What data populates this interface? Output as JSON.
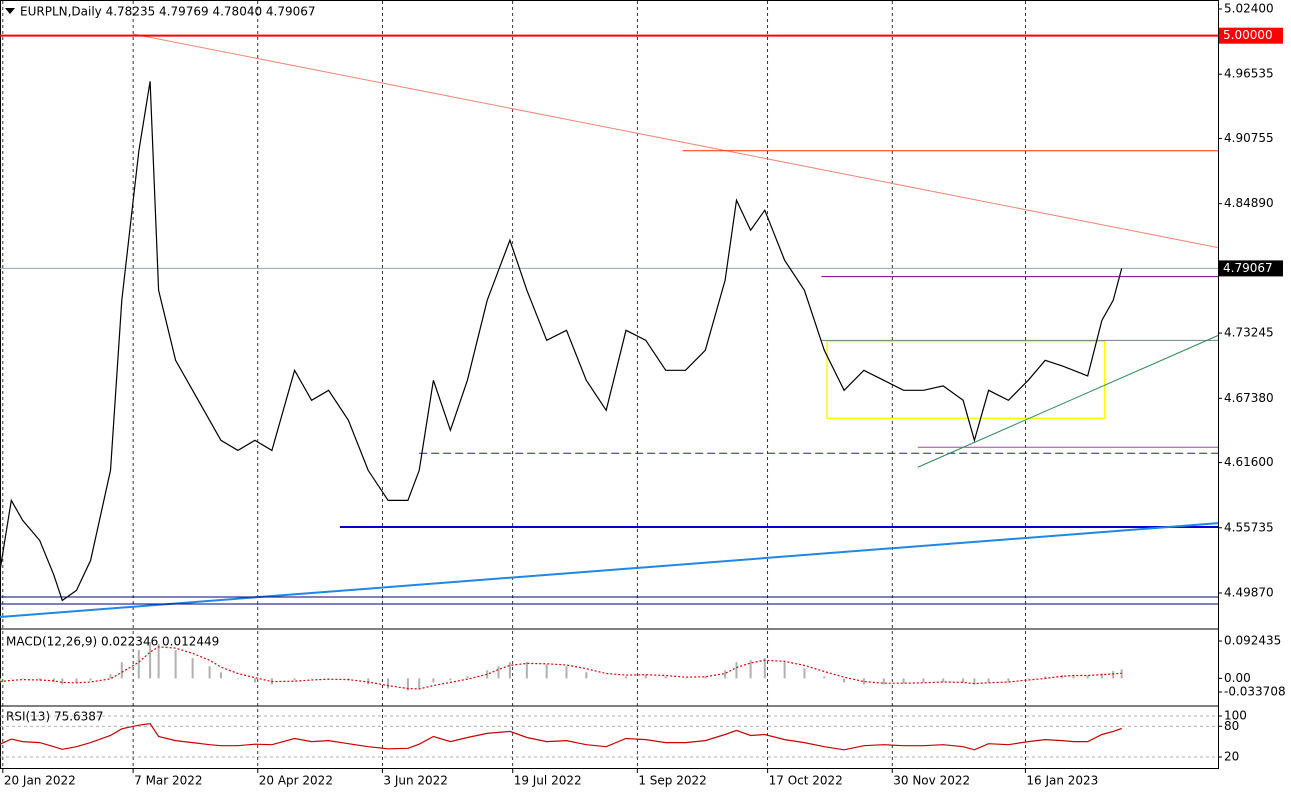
{
  "chart_data": [
    {
      "type": "line",
      "title": "EURPLN,Daily  4.78235 4.79769 4.78040 4.79067",
      "x": [
        "2022-01-19",
        "2022-01-23",
        "2022-01-27",
        "2022-02-02",
        "2022-02-07",
        "2022-02-10",
        "2022-02-15",
        "2022-02-20",
        "2022-02-27",
        "2022-03-03",
        "2022-03-09",
        "2022-03-13",
        "2022-03-16",
        "2022-03-22",
        "2022-03-28",
        "2022-04-03",
        "2022-04-07",
        "2022-04-13",
        "2022-04-19",
        "2022-04-25",
        "2022-05-03",
        "2022-05-09",
        "2022-05-15",
        "2022-05-22",
        "2022-05-29",
        "2022-06-05",
        "2022-06-12",
        "2022-06-16",
        "2022-06-21",
        "2022-06-27",
        "2022-07-03",
        "2022-07-10",
        "2022-07-14",
        "2022-07-18",
        "2022-07-24",
        "2022-07-31",
        "2022-08-07",
        "2022-08-14",
        "2022-08-21",
        "2022-08-28",
        "2022-09-04",
        "2022-09-11",
        "2022-09-18",
        "2022-09-25",
        "2022-10-02",
        "2022-10-06",
        "2022-10-11",
        "2022-10-16",
        "2022-10-23",
        "2022-10-30",
        "2022-11-06",
        "2022-11-13",
        "2022-11-20",
        "2022-11-27",
        "2022-12-04",
        "2022-12-11",
        "2022-12-18",
        "2022-12-25",
        "2022-12-29",
        "2023-01-03",
        "2023-01-10",
        "2023-01-17",
        "2023-01-23",
        "2023-01-29",
        "2023-02-02",
        "2023-02-07",
        "2023-02-12",
        "2023-02-16",
        "2023-02-19"
      ],
      "series": [
        {
          "color": "#000000",
          "values": [
            4.519,
            4.582,
            4.564,
            4.546,
            4.515,
            4.492,
            4.501,
            4.528,
            4.609,
            4.762,
            4.896,
            4.959,
            4.771,
            4.708,
            4.681,
            4.654,
            4.636,
            4.627,
            4.636,
            4.627,
            4.699,
            4.672,
            4.681,
            4.654,
            4.609,
            4.582,
            4.582,
            4.609,
            4.69,
            4.645,
            4.69,
            4.762,
            4.789,
            4.816,
            4.771,
            4.726,
            4.735,
            4.69,
            4.663,
            4.735,
            4.726,
            4.699,
            4.699,
            4.717,
            4.78,
            4.852,
            4.825,
            4.843,
            4.798,
            4.771,
            4.717,
            4.681,
            4.699,
            4.69,
            4.681,
            4.681,
            4.685,
            4.672,
            4.636,
            4.681,
            4.672,
            4.69,
            4.708,
            4.703,
            4.699,
            4.694,
            4.744,
            4.762,
            4.79067
          ]
        }
      ],
      "xlim": [
        "2022-01-19",
        "2023-03-25"
      ],
      "xticks": [
        {
          "value": "2022-01-20",
          "label": "20 Jan 2022"
        },
        {
          "value": "2022-03-07",
          "label": "7 Mar 2022"
        },
        {
          "value": "2022-04-20",
          "label": "20 Apr 2022"
        },
        {
          "value": "2022-06-03",
          "label": "3 Jun 2022"
        },
        {
          "value": "2022-07-19",
          "label": "19 Jul 2022"
        },
        {
          "value": "2022-09-01",
          "label": "1 Sep 2022"
        },
        {
          "value": "2022-10-17",
          "label": "17 Oct 2022"
        },
        {
          "value": "2022-11-30",
          "label": "30 Nov 2022"
        },
        {
          "value": "2023-01-16",
          "label": "16 Jan 2023"
        }
      ],
      "ylim": [
        4.4672,
        5.0312
      ],
      "yticks": [
        {
          "value": 5.024,
          "label": "5.02400"
        },
        {
          "value": 4.96535,
          "label": "4.96535"
        },
        {
          "value": 4.90755,
          "label": "4.90755"
        },
        {
          "value": 4.8489,
          "label": "4.84890"
        },
        {
          "value": 4.73245,
          "label": "4.73245"
        },
        {
          "value": 4.6738,
          "label": "4.67380"
        },
        {
          "value": 4.616,
          "label": "4.61600"
        },
        {
          "value": 4.55735,
          "label": "4.55735"
        },
        {
          "value": 4.4987,
          "label": "4.49870"
        }
      ],
      "grid": "vertical",
      "levels": [
        {
          "value": 5.0,
          "label": "5.00000",
          "color": "#ff0000",
          "label_fill": "#ff0000"
        },
        {
          "value": 4.79067,
          "label": "4.79067",
          "color": "#90a4ae",
          "label_fill": "#000000"
        },
        {
          "value": 4.4951,
          "color": "#000080"
        },
        {
          "value": 4.4888,
          "color": "#000080"
        }
      ],
      "lines": [
        {
          "x": [
            "2022-03-07",
            "2023-03-25"
          ],
          "y": [
            5.0015,
            4.8094
          ],
          "color": "#f08878"
        },
        {
          "x": [
            "2022-09-17",
            "2023-03-25"
          ],
          "y": [
            4.8965,
            4.8965
          ],
          "color": "#ff3300"
        },
        {
          "x": [
            "2022-11-05",
            "2023-03-25"
          ],
          "y": [
            4.7833,
            4.7833
          ],
          "color": "#800080"
        },
        {
          "x": [
            "2022-11-05",
            "2023-03-25"
          ],
          "y": [
            4.7259,
            4.7259
          ],
          "color": "#708090"
        },
        {
          "x": [
            "2022-05-19",
            "2023-03-25"
          ],
          "y": [
            4.558,
            4.558
          ],
          "color": "#0000cc",
          "width": 2
        },
        {
          "x": [
            "2022-06-16",
            "2023-03-25"
          ],
          "y": [
            4.6244,
            4.6244
          ],
          "color": "#1a237e",
          "dash": true
        },
        {
          "x": [
            "2022-12-09",
            "2023-03-25"
          ],
          "y": [
            4.6298,
            4.6298
          ],
          "color": "#9c4f9c"
        },
        {
          "x": [
            "2022-12-09",
            "2023-03-25"
          ],
          "y": [
            4.6118,
            4.7303
          ],
          "color": "#2e8b57"
        },
        {
          "x": [
            "2022-01-19",
            "2023-03-25"
          ],
          "y": [
            4.4771,
            4.5615
          ],
          "color": "#1e88e5",
          "width": 2
        }
      ],
      "rects": [
        {
          "x": [
            "2022-11-07",
            "2023-02-13"
          ],
          "y": [
            4.725,
            4.6558
          ],
          "color": "#ffff00"
        }
      ]
    },
    {
      "type": "line",
      "title": "MACD(12,26,9) 0.022346 0.012449",
      "x": [
        "2022-01-19",
        "2022-01-23",
        "2022-01-27",
        "2022-02-02",
        "2022-02-07",
        "2022-02-10",
        "2022-02-15",
        "2022-02-20",
        "2022-02-27",
        "2022-03-03",
        "2022-03-09",
        "2022-03-13",
        "2022-03-16",
        "2022-03-22",
        "2022-03-28",
        "2022-04-03",
        "2022-04-07",
        "2022-04-13",
        "2022-04-19",
        "2022-04-25",
        "2022-05-03",
        "2022-05-09",
        "2022-05-15",
        "2022-05-22",
        "2022-05-29",
        "2022-06-05",
        "2022-06-12",
        "2022-06-16",
        "2022-06-21",
        "2022-06-27",
        "2022-07-03",
        "2022-07-10",
        "2022-07-14",
        "2022-07-18",
        "2022-07-24",
        "2022-07-31",
        "2022-08-07",
        "2022-08-14",
        "2022-08-21",
        "2022-08-28",
        "2022-09-04",
        "2022-09-11",
        "2022-09-18",
        "2022-09-25",
        "2022-10-02",
        "2022-10-06",
        "2022-10-11",
        "2022-10-16",
        "2022-10-23",
        "2022-10-30",
        "2022-11-06",
        "2022-11-13",
        "2022-11-20",
        "2022-11-27",
        "2022-12-04",
        "2022-12-11",
        "2022-12-18",
        "2022-12-25",
        "2022-12-29",
        "2023-01-03",
        "2023-01-10",
        "2023-01-17",
        "2023-01-23",
        "2023-01-29",
        "2023-02-02",
        "2023-02-07",
        "2023-02-12",
        "2023-02-16",
        "2023-02-19"
      ],
      "series": [
        {
          "style": "histogram",
          "color": "#b0b0b0",
          "values": [
            -0.01,
            0,
            0,
            -0.005,
            -0.01,
            -0.015,
            -0.012,
            -0.005,
            0.01,
            0.04,
            0.07,
            0.09,
            0.085,
            0.07,
            0.05,
            0.03,
            0.015,
            0,
            -0.01,
            -0.015,
            -0.005,
            0,
            0,
            -0.005,
            -0.015,
            -0.025,
            -0.03,
            -0.025,
            -0.01,
            -0.005,
            0.005,
            0.02,
            0.03,
            0.04,
            0.04,
            0.035,
            0.03,
            0.015,
            0,
            0.005,
            0.01,
            0.005,
            0,
            0.005,
            0.02,
            0.04,
            0.045,
            0.05,
            0.04,
            0.025,
            0.005,
            -0.01,
            -0.015,
            -0.015,
            -0.012,
            -0.01,
            -0.008,
            -0.01,
            -0.015,
            -0.01,
            -0.008,
            0,
            0.005,
            0.008,
            0.008,
            0.007,
            0.012,
            0.018,
            0.022346
          ]
        },
        {
          "style": "dotted",
          "color": "#e00000",
          "values": [
            -0.008,
            -0.005,
            -0.003,
            -0.004,
            -0.006,
            -0.01,
            -0.011,
            -0.009,
            -0.001,
            0.015,
            0.04,
            0.065,
            0.078,
            0.075,
            0.062,
            0.045,
            0.028,
            0.012,
            0.002,
            -0.008,
            -0.007,
            -0.004,
            -0.002,
            -0.003,
            -0.009,
            -0.018,
            -0.025,
            -0.026,
            -0.018,
            -0.01,
            -0.002,
            0.01,
            0.022,
            0.032,
            0.037,
            0.036,
            0.033,
            0.024,
            0.012,
            0.008,
            0.009,
            0.007,
            0.003,
            0.004,
            0.012,
            0.027,
            0.038,
            0.045,
            0.042,
            0.032,
            0.017,
            0.003,
            -0.008,
            -0.012,
            -0.012,
            -0.011,
            -0.009,
            -0.01,
            -0.013,
            -0.011,
            -0.009,
            -0.004,
            0,
            0.005,
            0.007,
            0.007,
            0.009,
            0.011,
            0.012449
          ]
        }
      ],
      "ylim": [
        -0.0659,
        0.1197
      ],
      "yticks": [
        {
          "value": 0.092435,
          "label": "0.092435"
        },
        {
          "value": 0,
          "label": "0.00"
        },
        {
          "value": -0.033708,
          "label": "-0.033708"
        }
      ]
    },
    {
      "type": "line",
      "title": "RSI(13) 75.6387",
      "x": [
        "2022-01-19",
        "2022-01-23",
        "2022-01-27",
        "2022-02-02",
        "2022-02-07",
        "2022-02-10",
        "2022-02-15",
        "2022-02-20",
        "2022-02-27",
        "2022-03-03",
        "2022-03-09",
        "2022-03-13",
        "2022-03-16",
        "2022-03-22",
        "2022-03-28",
        "2022-04-03",
        "2022-04-07",
        "2022-04-13",
        "2022-04-19",
        "2022-04-25",
        "2022-05-03",
        "2022-05-09",
        "2022-05-15",
        "2022-05-22",
        "2022-05-29",
        "2022-06-05",
        "2022-06-12",
        "2022-06-16",
        "2022-06-21",
        "2022-06-27",
        "2022-07-03",
        "2022-07-10",
        "2022-07-14",
        "2022-07-18",
        "2022-07-24",
        "2022-07-31",
        "2022-08-07",
        "2022-08-14",
        "2022-08-21",
        "2022-08-28",
        "2022-09-04",
        "2022-09-11",
        "2022-09-18",
        "2022-09-25",
        "2022-10-02",
        "2022-10-06",
        "2022-10-11",
        "2022-10-16",
        "2022-10-23",
        "2022-10-30",
        "2022-11-06",
        "2022-11-13",
        "2022-11-20",
        "2022-11-27",
        "2022-12-04",
        "2022-12-11",
        "2022-12-18",
        "2022-12-25",
        "2022-12-29",
        "2023-01-03",
        "2023-01-10",
        "2023-01-17",
        "2023-01-23",
        "2023-01-29",
        "2023-02-02",
        "2023-02-07",
        "2023-02-12",
        "2023-02-16",
        "2023-02-19"
      ],
      "series": [
        {
          "color": "#cc0000",
          "values": [
            45,
            55,
            50,
            48,
            40,
            35,
            40,
            48,
            62,
            75,
            82,
            85,
            60,
            52,
            48,
            44,
            42,
            42,
            45,
            44,
            56,
            50,
            52,
            46,
            40,
            36,
            37,
            45,
            60,
            50,
            58,
            66,
            68,
            70,
            58,
            50,
            52,
            44,
            40,
            56,
            54,
            48,
            48,
            52,
            64,
            72,
            62,
            64,
            54,
            48,
            40,
            34,
            42,
            44,
            42,
            42,
            44,
            40,
            34,
            46,
            44,
            50,
            54,
            52,
            50,
            50,
            64,
            70,
            75.6387
          ]
        }
      ],
      "ylim": [
        -1.5,
        117.6
      ],
      "yticks": [
        100,
        80,
        20
      ],
      "grid": true
    }
  ]
}
